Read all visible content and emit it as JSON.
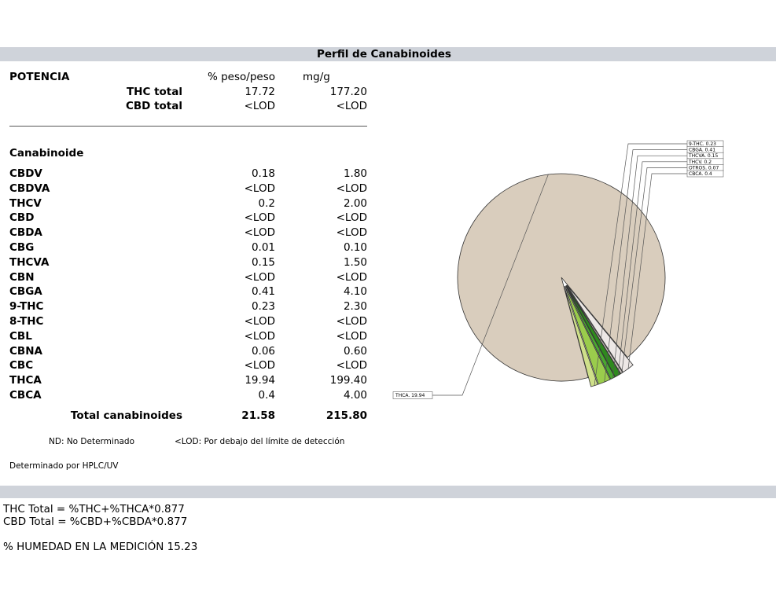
{
  "header": {
    "title": "Perfil de Canabinoides"
  },
  "potency": {
    "section_label": "POTENCIA",
    "col_weight": "% peso/peso",
    "col_mg": "mg/g",
    "rows": [
      {
        "label": "THC total",
        "weight": "17.72",
        "mg": "177.20"
      },
      {
        "label": "CBD total",
        "weight": "<LOD",
        "mg": "<LOD"
      }
    ]
  },
  "cannabinoids": {
    "section_label": "Canabinoide",
    "rows": [
      {
        "name": "CBDV",
        "weight": "0.18",
        "mg": "1.80"
      },
      {
        "name": "CBDVA",
        "weight": "<LOD",
        "mg": "<LOD"
      },
      {
        "name": "THCV",
        "weight": "0.2",
        "mg": "2.00"
      },
      {
        "name": "CBD",
        "weight": "<LOD",
        "mg": "<LOD"
      },
      {
        "name": "CBDA",
        "weight": "<LOD",
        "mg": "<LOD"
      },
      {
        "name": "CBG",
        "weight": "0.01",
        "mg": "0.10"
      },
      {
        "name": "THCVA",
        "weight": "0.15",
        "mg": "1.50"
      },
      {
        "name": "CBN",
        "weight": "<LOD",
        "mg": "<LOD"
      },
      {
        "name": "CBGA",
        "weight": "0.41",
        "mg": "4.10"
      },
      {
        "name": "9-THC",
        "weight": "0.23",
        "mg": "2.30"
      },
      {
        "name": "8-THC",
        "weight": "<LOD",
        "mg": "<LOD"
      },
      {
        "name": "CBL",
        "weight": "<LOD",
        "mg": "<LOD"
      },
      {
        "name": "CBNA",
        "weight": "0.06",
        "mg": "0.60"
      },
      {
        "name": "CBC",
        "weight": "<LOD",
        "mg": "<LOD"
      },
      {
        "name": "THCA",
        "weight": "19.94",
        "mg": "199.40"
      },
      {
        "name": "CBCA",
        "weight": "0.4",
        "mg": "4.00"
      }
    ],
    "total": {
      "label": "Total canabinoides",
      "weight": "21.58",
      "mg": "215.80"
    }
  },
  "notes": {
    "nd": "ND: No Determinado",
    "lod": "<LOD: Por debajo del límite de detección",
    "method": "Determinado por HPLC/UV"
  },
  "formulas": {
    "thc": "THC Total = %THC+%THCA*0.877",
    "cbd": "CBD Total = %CBD+%CBDA*0.877",
    "humidity": "% HUMEDAD EN LA MEDICIÓN 15.23"
  },
  "chart_data": {
    "type": "pie",
    "slices": [
      {
        "label": "THCA",
        "value": 19.94,
        "text": "THCA. 19.94",
        "color": "#d9cdbd"
      },
      {
        "label": "CBCA",
        "value": 0.4,
        "text": "CBCA. 0.4",
        "color": "#ede8e6"
      },
      {
        "label": "OTROS",
        "value": 0.07,
        "text": "OTROS. 0.07",
        "color": "#cfc7c2"
      },
      {
        "label": "THCV",
        "value": 0.2,
        "text": "THCV. 0.2",
        "color": "#2e8a1e"
      },
      {
        "label": "THCVA",
        "value": 0.15,
        "text": "THCVA. 0.15",
        "color": "#4aa830"
      },
      {
        "label": "CBGA",
        "value": 0.41,
        "text": "CBGA. 0.41",
        "color": "#9acc4c"
      },
      {
        "label": "9-THC",
        "value": 0.23,
        "text": "9-THC. 0.23",
        "color": "#cfe08a"
      }
    ]
  }
}
